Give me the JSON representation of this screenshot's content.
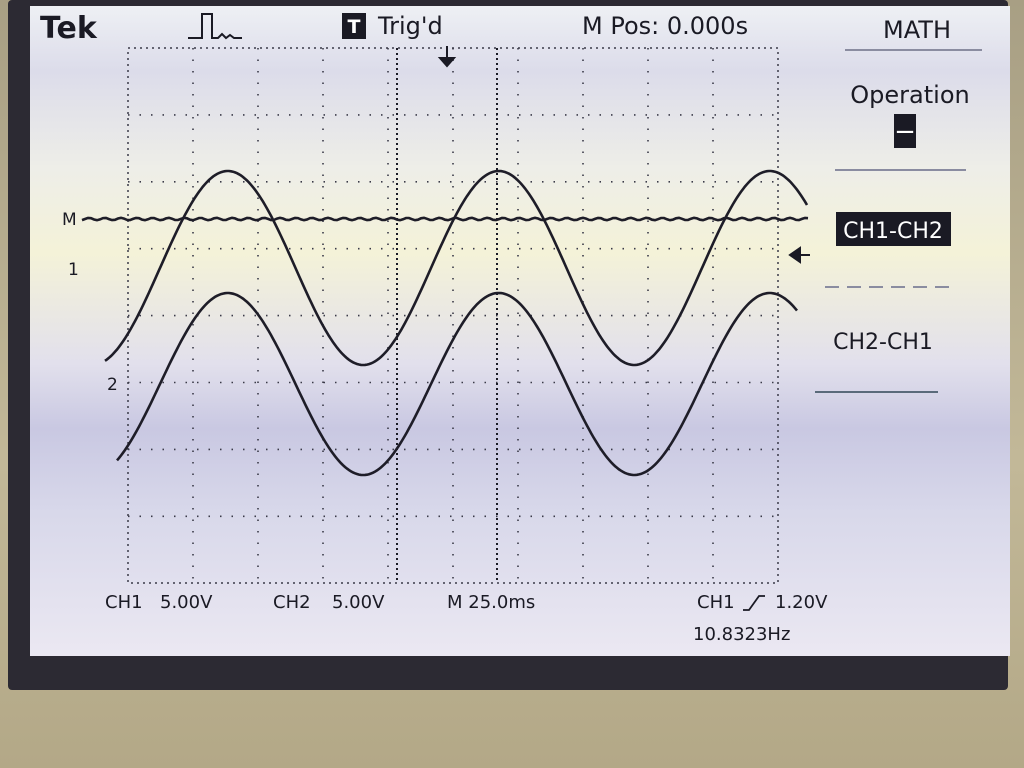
{
  "header": {
    "brand": "Tek",
    "trigger_icon": "T",
    "trigger_status": "Trig'd",
    "position": "M Pos: 0.000s"
  },
  "menu": {
    "title": "MATH",
    "operation_label": "Operation",
    "operation_value": "−",
    "options": [
      "CH1-CH2",
      "CH2-CH1"
    ]
  },
  "markers": [
    "M",
    "1",
    "2"
  ],
  "footer": {
    "ch1_label": "CH1",
    "ch1_scale": "5.00V",
    "ch2_label": "CH2",
    "ch2_scale": "5.00V",
    "timebase": "M 25.0ms",
    "trigger_source": "CH1",
    "trigger_level": "1.20V",
    "frequency": "10.8323Hz"
  }
}
